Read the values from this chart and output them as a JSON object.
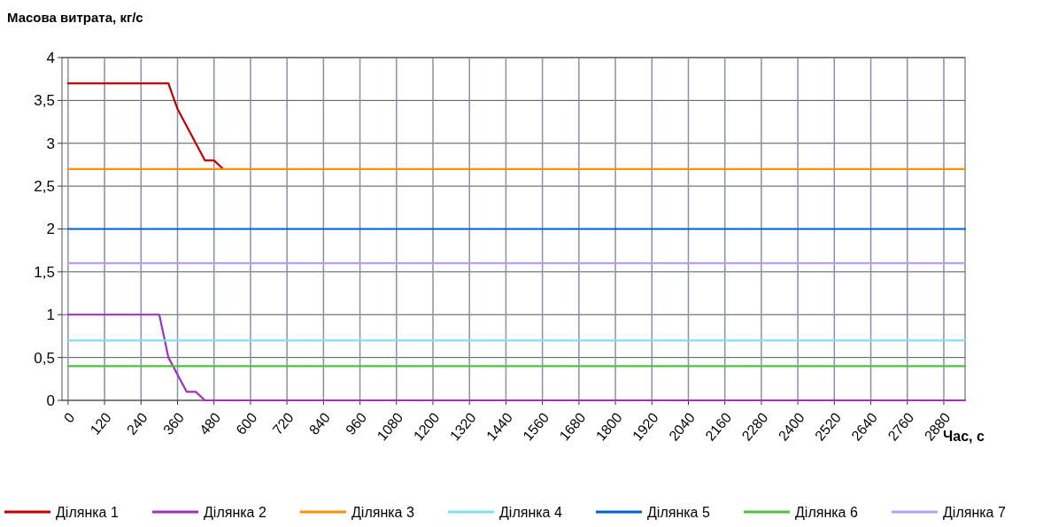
{
  "chart_data": {
    "type": "line",
    "title": "Масова витрата, кг/с",
    "xlabel": "Час, с",
    "xlim": [
      -20,
      2950
    ],
    "xticks": [
      0,
      120,
      240,
      360,
      480,
      600,
      720,
      840,
      960,
      1080,
      1200,
      1320,
      1440,
      1560,
      1680,
      1800,
      1920,
      2040,
      2160,
      2280,
      2400,
      2520,
      2640,
      2760,
      2880
    ],
    "ylim": [
      0,
      4
    ],
    "yticks": [
      0,
      {
        "value": 0.5,
        "label": "0,5"
      },
      1,
      {
        "value": 1.5,
        "label": "1,5"
      },
      2,
      {
        "value": 2.5,
        "label": "2,5"
      },
      3,
      {
        "value": 3.5,
        "label": "3,5"
      },
      4
    ],
    "grid": true,
    "legend": "bottom",
    "marker": "none",
    "line_style": "solid",
    "series": [
      {
        "name": "Ділянка 1",
        "color": "#c00000",
        "x": [
          0,
          330,
          360,
          450,
          480,
          510
        ],
        "values": [
          3.7,
          3.7,
          3.4,
          2.8,
          2.8,
          2.7
        ]
      },
      {
        "name": "Ділянка 2",
        "color": "#a030c0",
        "x": [
          0,
          300,
          330,
          390,
          420,
          450,
          2950
        ],
        "values": [
          1,
          1,
          0.5,
          0.1,
          0.1,
          0,
          0
        ]
      },
      {
        "name": "Ділянка 3",
        "color": "#ff9000",
        "x": [
          0,
          2950
        ],
        "values": [
          2.7,
          2.7
        ]
      },
      {
        "name": "Ділянка 4",
        "color": "#80e0f0",
        "x": [
          0,
          2950
        ],
        "values": [
          0.7,
          0.7
        ]
      },
      {
        "name": "Ділянка 5",
        "color": "#0060d0",
        "x": [
          0,
          2950
        ],
        "values": [
          2,
          2
        ]
      },
      {
        "name": "Ділянка 6",
        "color": "#50c040",
        "x": [
          0,
          2950
        ],
        "values": [
          0.4,
          0.4
        ]
      },
      {
        "name": "Ділянка 7",
        "color": "#b8a0f0",
        "x": [
          0,
          2950
        ],
        "values": [
          1.6,
          1.6
        ]
      }
    ]
  }
}
